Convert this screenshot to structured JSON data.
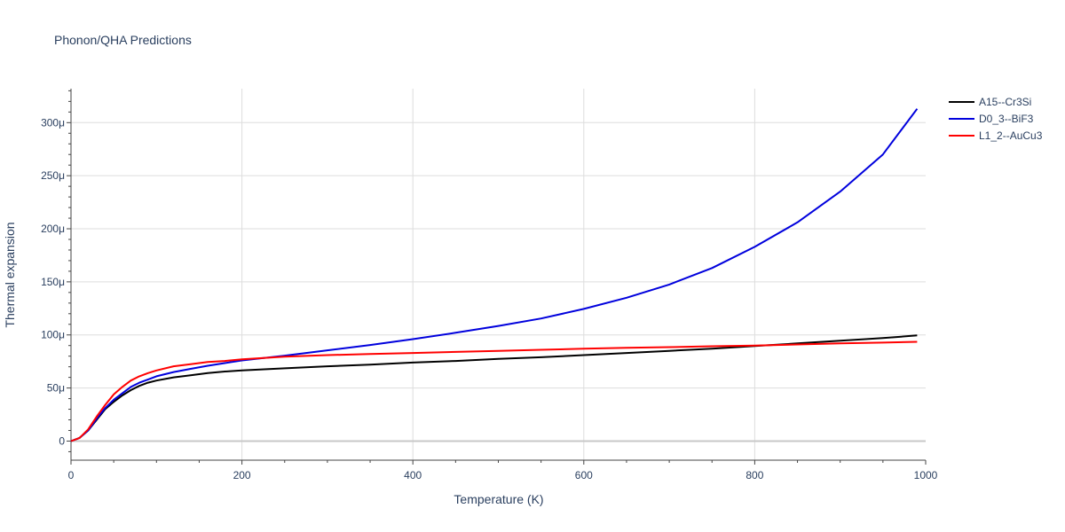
{
  "chart_data": {
    "type": "line",
    "title": "Phonon/QHA Predictions",
    "xlabel": "Temperature (K)",
    "ylabel": "Thermal expansion",
    "xlim": [
      0,
      1000
    ],
    "ylim": [
      -18,
      332
    ],
    "x_ticks": [
      0,
      200,
      400,
      600,
      800,
      1000
    ],
    "x_tick_labels": [
      "0",
      "200",
      "400",
      "600",
      "800",
      "1000"
    ],
    "y_ticks": [
      0,
      50,
      100,
      150,
      200,
      250,
      300
    ],
    "y_tick_labels": [
      "0",
      "50μ",
      "100μ",
      "150μ",
      "200μ",
      "250μ",
      "300μ"
    ],
    "y_unit_scale": "1e-6",
    "grid": true,
    "legend_position": "top-right",
    "series": [
      {
        "name": "A15--Cr3Si",
        "color": "#000000",
        "x": [
          0,
          10,
          20,
          30,
          40,
          50,
          60,
          70,
          80,
          90,
          100,
          120,
          140,
          160,
          180,
          200,
          250,
          300,
          350,
          400,
          450,
          500,
          550,
          600,
          650,
          700,
          750,
          800,
          850,
          900,
          950,
          990
        ],
        "y": [
          0,
          3,
          10,
          20,
          30,
          37,
          43,
          48,
          52,
          55,
          57,
          60,
          62,
          64,
          65.5,
          66.5,
          68.5,
          70.5,
          72,
          74,
          75.5,
          77.5,
          79,
          81,
          83,
          85,
          87,
          89.5,
          92,
          94.5,
          97,
          99.5
        ]
      },
      {
        "name": "D0_3--BiF3",
        "color": "#0000dd",
        "x": [
          0,
          10,
          20,
          30,
          40,
          50,
          60,
          70,
          80,
          90,
          100,
          120,
          140,
          160,
          180,
          200,
          250,
          300,
          350,
          400,
          450,
          500,
          550,
          600,
          650,
          700,
          750,
          800,
          850,
          900,
          950,
          990
        ],
        "y": [
          0,
          3,
          10,
          21,
          31,
          39,
          45,
          51,
          55,
          58,
          61,
          65,
          68,
          71,
          73.5,
          76,
          80.5,
          85.5,
          90.5,
          96,
          102,
          108.5,
          115.5,
          124.5,
          135,
          147.5,
          163,
          183,
          206,
          235,
          270,
          313
        ]
      },
      {
        "name": "L1_2--AuCu3",
        "color": "#ff0000",
        "x": [
          0,
          10,
          20,
          30,
          40,
          50,
          60,
          70,
          80,
          90,
          100,
          120,
          140,
          160,
          180,
          200,
          250,
          300,
          350,
          400,
          450,
          500,
          550,
          600,
          650,
          700,
          750,
          800,
          850,
          900,
          950,
          990
        ],
        "y": [
          0,
          3,
          11,
          23,
          34,
          44,
          51,
          57,
          61,
          64,
          66.5,
          70.5,
          72.5,
          74.5,
          75.5,
          77,
          79.5,
          81,
          82,
          83,
          84,
          85,
          86,
          87,
          87.8,
          88.5,
          89.3,
          90,
          91,
          92,
          92.8,
          93.5
        ]
      }
    ]
  }
}
